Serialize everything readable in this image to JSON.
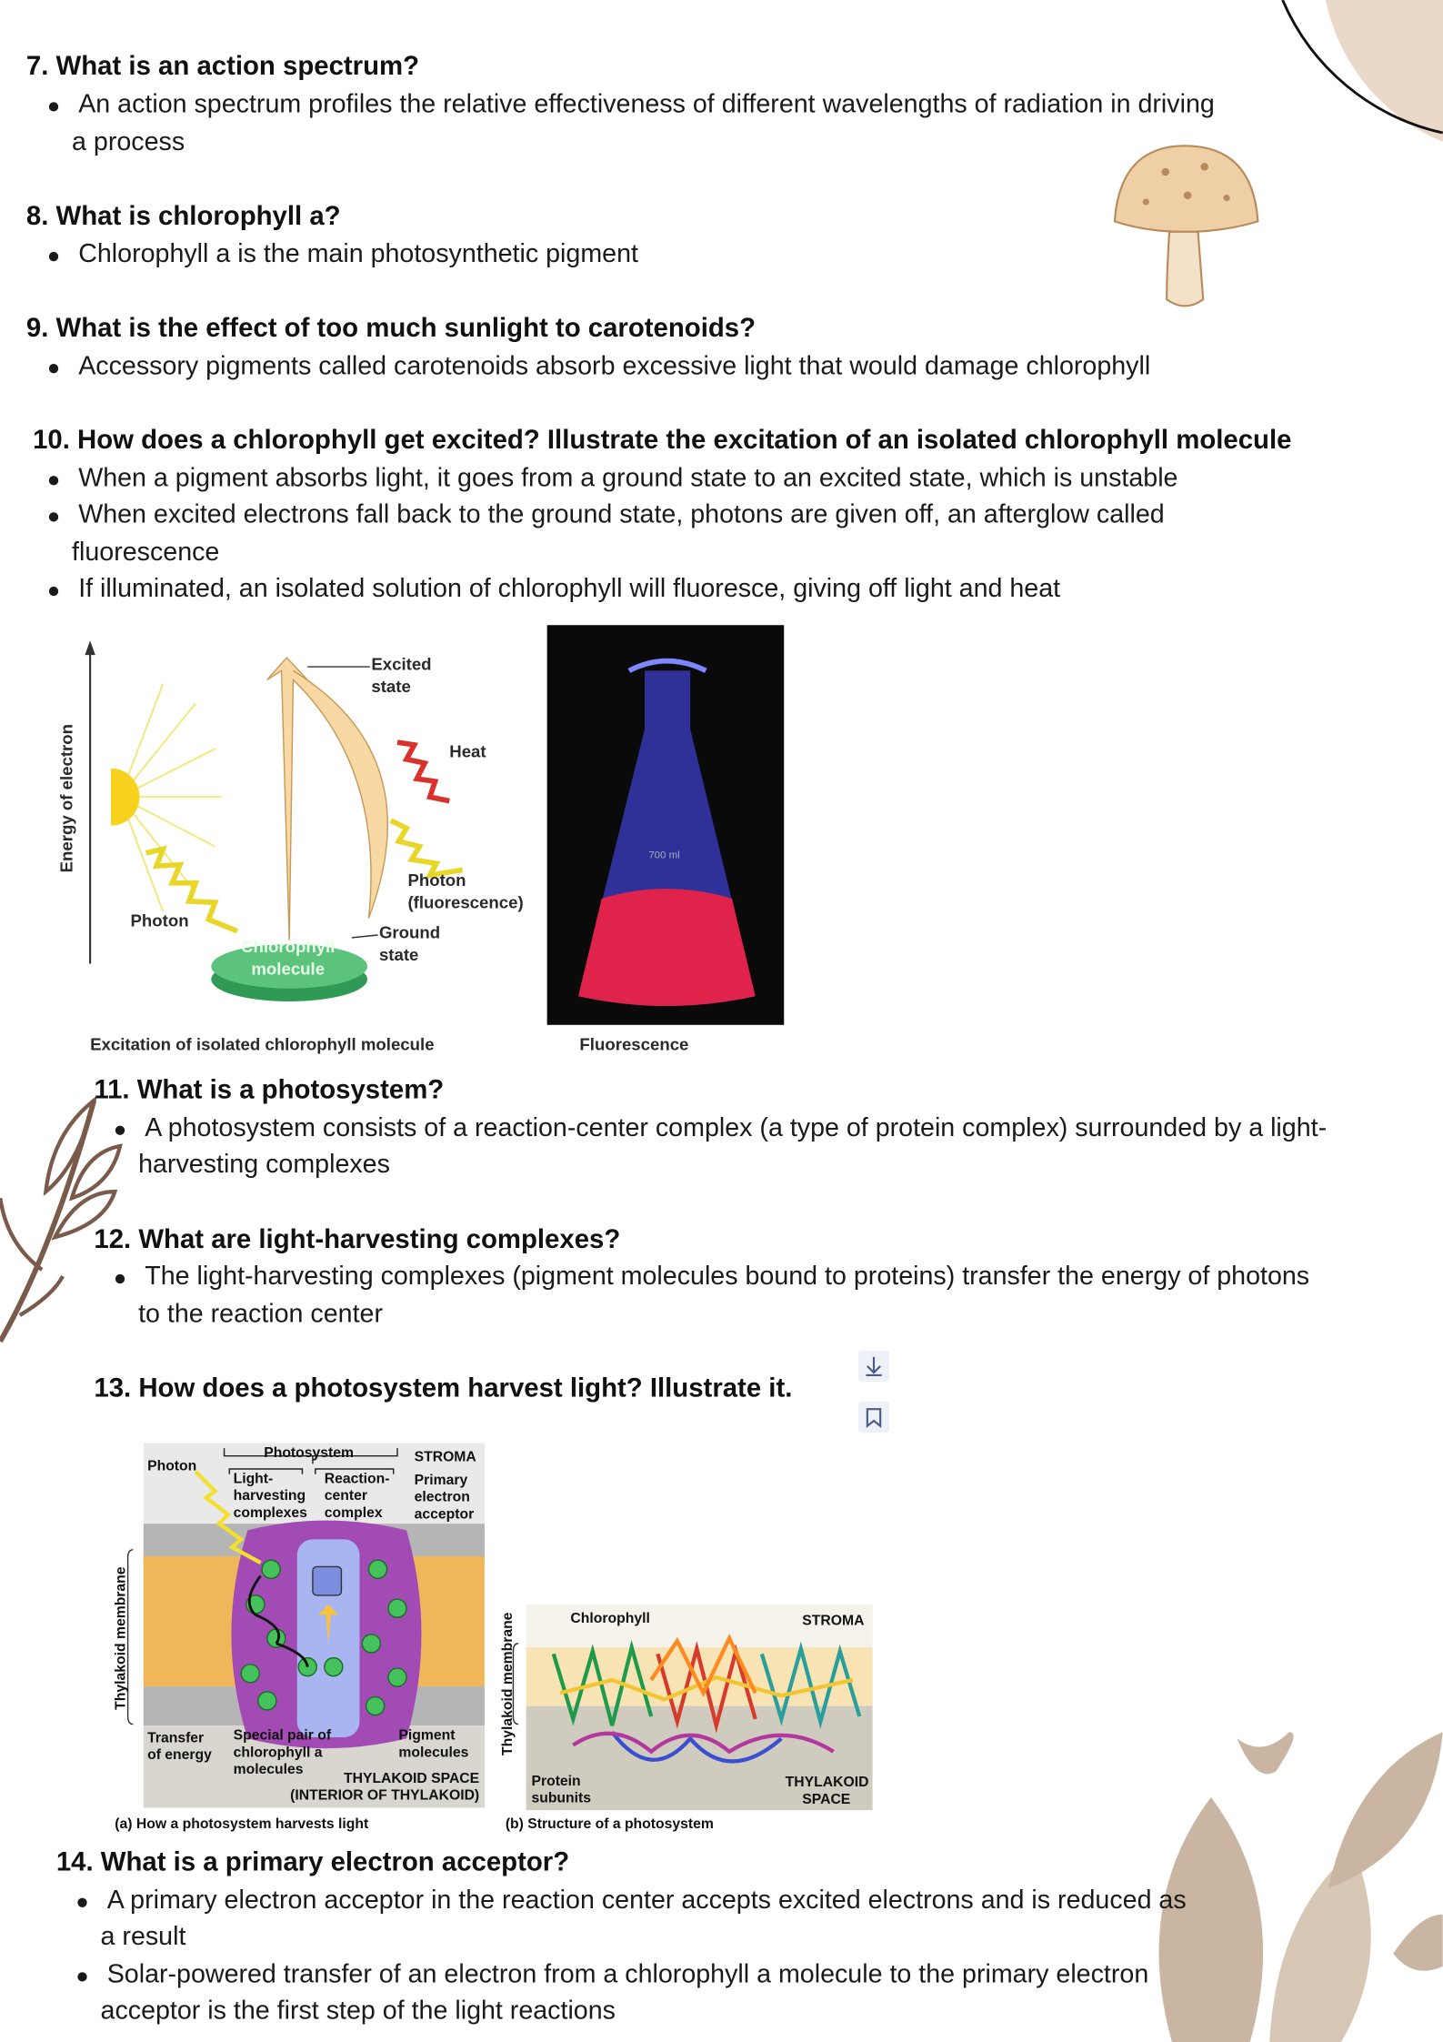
{
  "sections": [
    {
      "heading": "7. What is an action spectrum?",
      "bullets": [
        [
          "An action spectrum profiles the relative effectiveness of different wavelengths of radiation in driving",
          "a process"
        ]
      ]
    },
    {
      "heading": "8. What is chlorophyll a?",
      "bullets": [
        [
          "Chlorophyll a is the main photosynthetic pigment"
        ]
      ]
    },
    {
      "heading": "9. What is the effect of too much sunlight to carotenoids?",
      "bullets": [
        [
          "Accessory pigments called carotenoids absorb excessive light that would damage chlorophyll"
        ]
      ]
    },
    {
      "heading": "10. How does a chlorophyll get excited? Illustrate the excitation of an isolated chlorophyll molecule",
      "bullets": [
        [
          "When a pigment absorbs light, it goes from a ground state to an excited state, which is unstable"
        ],
        [
          "When excited electrons fall back to the ground state, photons are given off, an afterglow called",
          "fluorescence"
        ],
        [
          "If illuminated, an isolated solution of chlorophyll will fluoresce, giving off light and heat"
        ]
      ]
    },
    {
      "heading": "11. What is a photosystem?",
      "bullets": [
        [
          "A photosystem consists of a reaction-center complex (a type of protein complex) surrounded by a light-",
          "harvesting complexes"
        ]
      ]
    },
    {
      "heading": "12. What are light-harvesting complexes?",
      "bullets": [
        [
          "The light-harvesting complexes (pigment molecules bound to proteins) transfer the energy of photons",
          "to the reaction center"
        ]
      ]
    },
    {
      "heading": "13. How does a photosystem harvest light? Illustrate it.",
      "bullets": []
    },
    {
      "heading": "14. What is a primary electron acceptor?",
      "bullets": [
        [
          "A primary electron acceptor in the reaction center accepts excited electrons and is reduced as",
          "a result"
        ],
        [
          "Solar-powered transfer of an electron from a chlorophyll a molecule to the primary electron",
          "acceptor is the first step of the light reactions"
        ]
      ]
    }
  ],
  "figure_1": {
    "axis_label": "Energy of electron",
    "excited_state": [
      "Excited",
      "state"
    ],
    "heat": "Heat",
    "photon_fluorescence": [
      "Photon",
      "(fluorescence)"
    ],
    "ground_state": [
      "Ground",
      "state"
    ],
    "photon": "Photon",
    "molecule": [
      "Chlorophyll",
      "molecule"
    ],
    "flask_mark": "700 ml",
    "caption": "Excitation of isolated chlorophyll molecule",
    "photo_caption": "Fluorescence"
  },
  "figure_2": {
    "photosystem": "Photosystem",
    "stroma": "STROMA",
    "photon": "Photon",
    "light_harvesting": [
      "Light-",
      "harvesting",
      "complexes"
    ],
    "reaction_center": [
      "Reaction-",
      "center",
      "complex"
    ],
    "primary_acceptor": [
      "Primary",
      "electron",
      "acceptor"
    ],
    "membrane": "Thylakoid membrane",
    "transfer": [
      "Transfer",
      "of energy"
    ],
    "special_pair": [
      "Special pair of",
      "chlorophyll a",
      "molecules"
    ],
    "pigment": [
      "Pigment",
      "molecules"
    ],
    "thylakoid_space": [
      "THYLAKOID SPACE",
      "(INTERIOR OF THYLAKOID)"
    ],
    "caption_a": "(a) How a photosystem harvests light",
    "chlorophyll": "Chlorophyll",
    "stroma_b": "STROMA",
    "membrane_b": "Thylakoid membrane",
    "protein": [
      "Protein",
      "subunits"
    ],
    "thylakoid_space_b": [
      "THYLAKOID",
      "SPACE"
    ],
    "caption_b": "(b) Structure of a photosystem"
  }
}
